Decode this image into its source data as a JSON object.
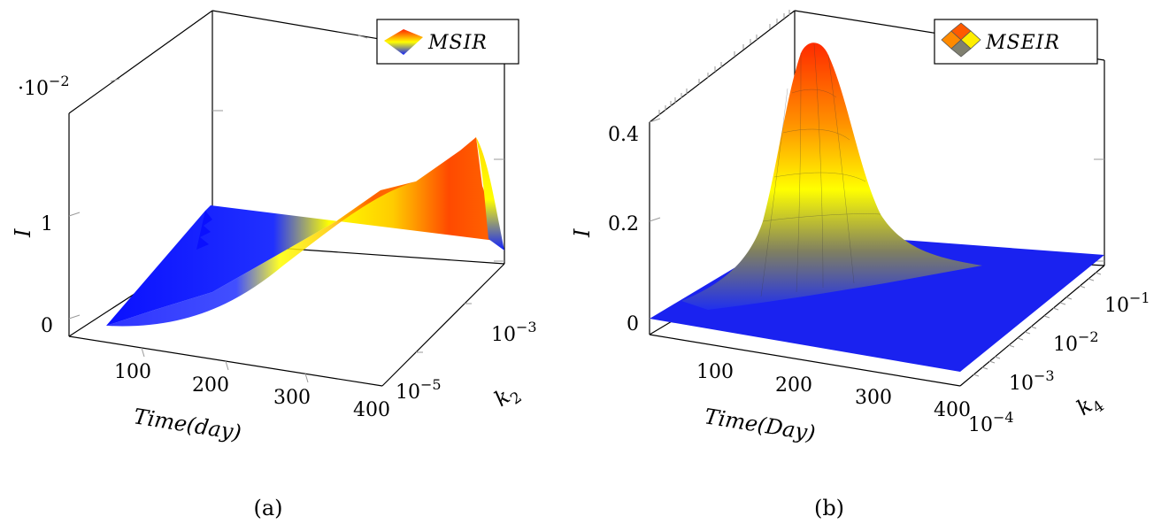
{
  "chart_data": [
    {
      "type": "surface",
      "panel_caption": "(a)",
      "legend": {
        "entry": "MSIR",
        "placement": "top-right"
      },
      "zlabel": "I",
      "z_multiplier_label": "·10",
      "z_multiplier_exponent": "−2",
      "xlabel": "Time(day)",
      "ylabel_main": "k",
      "ylabel_sub": "2",
      "x_ticks": [
        "100",
        "200",
        "300",
        "400"
      ],
      "y_ticks": [
        {
          "base": "10",
          "exp": "−5"
        },
        {
          "base": "10",
          "exp": "−3"
        }
      ],
      "z_ticks": [
        "0",
        "1"
      ],
      "xlim": [
        20,
        400
      ],
      "ylim_log10": [
        -6,
        -2
      ],
      "zlim": [
        0,
        0.03
      ],
      "colormap": [
        "#0a10ff",
        "#ffff00",
        "#ff2200"
      ],
      "surface_ridge": {
        "x": [
          60,
          100,
          150,
          200,
          250,
          300,
          350,
          370,
          390
        ],
        "z_at_k2_1e-5": [
          0.0,
          0.0005,
          0.0015,
          0.003,
          0.005,
          0.007,
          0.009,
          0.0095,
          0.0098
        ],
        "z_at_k2_1e-3": [
          0.0,
          0.002,
          0.005,
          0.008,
          0.011,
          0.014,
          0.017,
          0.018,
          0.0182
        ]
      }
    },
    {
      "type": "surface",
      "panel_caption": "(b)",
      "legend": {
        "entry": "MSEIR",
        "placement": "top-right"
      },
      "zlabel": "I",
      "xlabel": "Time(Day)",
      "ylabel_main": "k",
      "ylabel_sub": "4",
      "x_ticks": [
        "100",
        "200",
        "300",
        "400"
      ],
      "y_ticks": [
        {
          "base": "10",
          "exp": "−4"
        },
        {
          "base": "10",
          "exp": "−3"
        },
        {
          "base": "10",
          "exp": "−2"
        },
        {
          "base": "10",
          "exp": "−1"
        }
      ],
      "z_ticks": [
        "0",
        "0.2",
        "0.4"
      ],
      "xlim": [
        20,
        400
      ],
      "ylim_log10": [
        -4,
        -0.5
      ],
      "zlim": [
        0,
        0.5
      ],
      "colormap": [
        "#0a10ff",
        "#ffff00",
        "#ff2200"
      ],
      "peak": {
        "x": 150,
        "k4": 0.3,
        "z": 0.5
      }
    }
  ]
}
